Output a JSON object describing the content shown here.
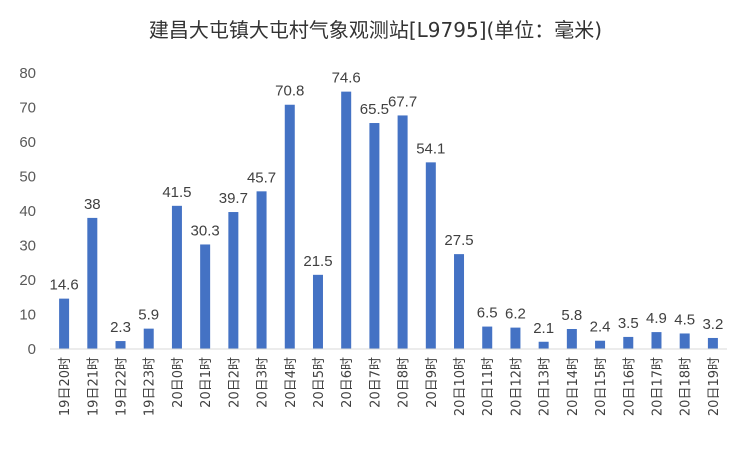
{
  "chart_data": {
    "type": "bar",
    "title": "建昌大屯镇大屯村气象观测站[L9795](单位：毫米)",
    "xlabel": "",
    "ylabel": "",
    "ylim": [
      0,
      80
    ],
    "yticks": [
      0,
      10,
      20,
      30,
      40,
      50,
      60,
      70,
      80
    ],
    "grid": false,
    "legend": "none",
    "bar_color": "#4472C4",
    "categories": [
      "19日20时",
      "19日21时",
      "19日22时",
      "19日23时",
      "20日0时",
      "20日1时",
      "20日2时",
      "20日3时",
      "20日4时",
      "20日5时",
      "20日6时",
      "20日7时",
      "20日8时",
      "20日9时",
      "20日10时",
      "20日11时",
      "20日12时",
      "20日13时",
      "20日14时",
      "20日15时",
      "20日16时",
      "20日17时",
      "20日18时",
      "20日19时"
    ],
    "values": [
      14.6,
      38,
      2.3,
      5.9,
      41.5,
      30.3,
      39.7,
      45.7,
      70.8,
      21.5,
      74.6,
      65.5,
      67.7,
      54.1,
      27.5,
      6.5,
      6.2,
      2.1,
      5.8,
      2.4,
      3.5,
      4.9,
      4.5,
      3.2
    ],
    "data_labels": [
      "14.6",
      "38",
      "2.3",
      "5.9",
      "41.5",
      "30.3",
      "39.7",
      "45.7",
      "70.8",
      "21.5",
      "74.6",
      "65.5",
      "67.7",
      "54.1",
      "27.5",
      "6.5",
      "6.2",
      "2.1",
      "5.8",
      "2.4",
      "3.5",
      "4.9",
      "4.5",
      "3.2"
    ]
  }
}
